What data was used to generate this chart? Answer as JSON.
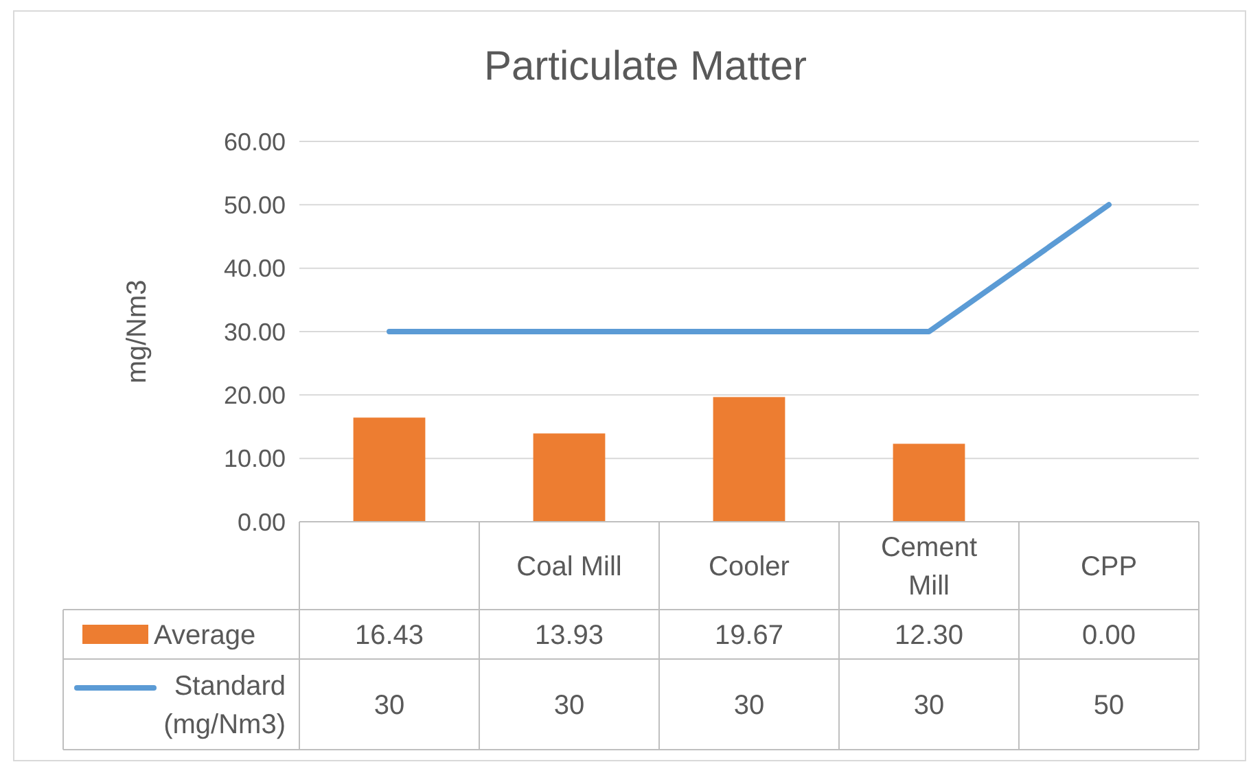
{
  "chart_data": {
    "type": "bar",
    "title": "Particulate Matter",
    "ylabel": "mg/Nm3",
    "categories": [
      null,
      "Coal Mill",
      "Cooler",
      "Cement Mill",
      "CPP"
    ],
    "series": [
      {
        "name": "Average",
        "color": "#ed7d31",
        "values": [
          16.43,
          13.93,
          19.67,
          12.3,
          0
        ],
        "value_labels": [
          "16.43",
          "13.93",
          "19.67",
          "12.30",
          "0.00"
        ]
      },
      {
        "name": "Standard (mg/Nm3)",
        "type": "line",
        "color": "#5b9bd5",
        "values": [
          30,
          30,
          30,
          30,
          50
        ],
        "value_labels": [
          "30",
          "30",
          "30",
          "30",
          "50"
        ]
      }
    ],
    "ylim": [
      0,
      60
    ],
    "yticks": [
      {
        "value": 0,
        "label": "0.00"
      },
      {
        "value": 10,
        "label": "10.00"
      },
      {
        "value": 20,
        "label": "20.00"
      },
      {
        "value": 30,
        "label": "30.00"
      },
      {
        "value": 40,
        "label": "40.00"
      },
      {
        "value": 50,
        "label": "50.00"
      },
      {
        "value": 60,
        "label": "60.00"
      }
    ],
    "grid": "y",
    "legend": "bottom",
    "line_style": "solid",
    "marker": "none"
  }
}
